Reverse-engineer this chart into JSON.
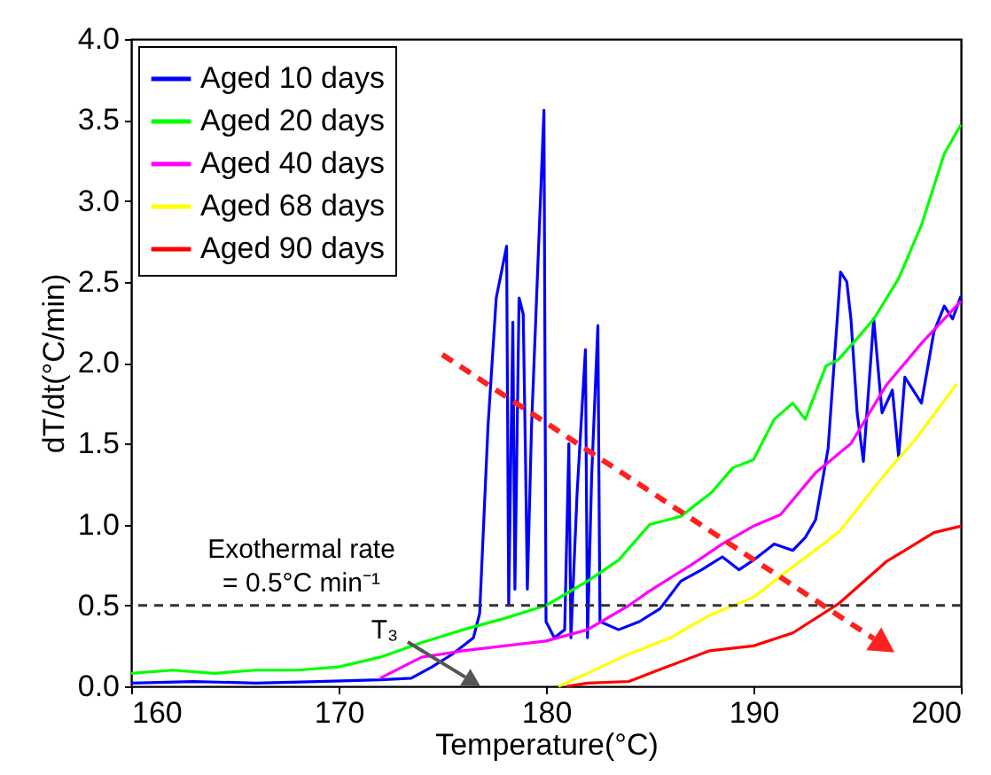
{
  "chart_data": {
    "type": "line",
    "xlabel": "Temperature(°C)",
    "ylabel": "dT/dt(°C/min)",
    "xlim": [
      160,
      200
    ],
    "xticks": [
      160,
      170,
      180,
      190,
      200
    ],
    "ylim": [
      0,
      4
    ],
    "yticks": [
      {
        "value": 0,
        "label": "0.0"
      },
      0.5,
      {
        "value": 1,
        "label": "1.0"
      },
      1.5,
      {
        "value": 2,
        "label": "2.0"
      },
      2.5,
      {
        "value": 3,
        "label": "3.0"
      },
      3.5,
      {
        "value": 4,
        "label": "4.0"
      }
    ],
    "grid": false,
    "legend": "top left",
    "series": [
      {
        "name": "Aged 10 days",
        "color": "#0000ff",
        "x": [
          160,
          163,
          166,
          169,
          172,
          173.5,
          174.5,
          175.5,
          176.5,
          176.8,
          177.2,
          177.6,
          178.1,
          178.2,
          178.4,
          178.5,
          178.7,
          178.9,
          179.0,
          179.1,
          179.3,
          179.9,
          180.0,
          180.4,
          180.9,
          181.1,
          181.2,
          181.5,
          181.9,
          182.0,
          182.2,
          182.5,
          182.6,
          183.5,
          184.5,
          185.5,
          186.5,
          187.5,
          188.5,
          189.3,
          190,
          191,
          191.9,
          192.5,
          193,
          193.6,
          194.2,
          194.5,
          194.7,
          195,
          195.3,
          195.8,
          196.2,
          196.7,
          197.0,
          197.3,
          198.1,
          198.7,
          199.2,
          199.6,
          200
        ],
        "values": [
          0.02,
          0.03,
          0.02,
          0.03,
          0.04,
          0.05,
          0.12,
          0.2,
          0.3,
          0.45,
          1.6,
          2.4,
          2.72,
          0.5,
          2.25,
          0.6,
          2.4,
          2.3,
          1.5,
          0.6,
          1.6,
          3.56,
          0.4,
          0.3,
          0.35,
          1.5,
          0.3,
          1.2,
          2.08,
          0.3,
          1.3,
          2.23,
          0.4,
          0.35,
          0.4,
          0.48,
          0.65,
          0.72,
          0.8,
          0.72,
          0.78,
          0.88,
          0.84,
          0.92,
          1.03,
          1.47,
          2.56,
          2.5,
          2.27,
          1.69,
          1.39,
          2.27,
          1.69,
          1.83,
          1.42,
          1.91,
          1.75,
          2.19,
          2.35,
          2.27,
          2.41
        ]
      },
      {
        "name": "Aged 20 days",
        "color": "#00ff00",
        "x": [
          160,
          162,
          164,
          166,
          168,
          170,
          172,
          174,
          176,
          178,
          180,
          182,
          183.5,
          185,
          186.5,
          188,
          189,
          190,
          191,
          191.9,
          192.5,
          193.5,
          194.1,
          195,
          195.8,
          197,
          198.1,
          199.2,
          200
        ],
        "values": [
          0.08,
          0.1,
          0.08,
          0.1,
          0.1,
          0.12,
          0.18,
          0.27,
          0.35,
          0.42,
          0.5,
          0.65,
          0.78,
          1.0,
          1.05,
          1.2,
          1.35,
          1.4,
          1.65,
          1.75,
          1.65,
          1.98,
          2.02,
          2.15,
          2.27,
          2.52,
          2.85,
          3.29,
          3.47
        ]
      },
      {
        "name": "Aged 40 days",
        "color": "#ff00ff",
        "x": [
          172,
          174,
          176,
          178,
          180,
          182,
          184,
          185,
          187,
          188.5,
          190,
          191.3,
          193,
          194.7,
          196.4,
          198.1,
          200
        ],
        "values": [
          0.05,
          0.18,
          0.22,
          0.25,
          0.28,
          0.35,
          0.5,
          0.59,
          0.75,
          0.88,
          0.99,
          1.06,
          1.32,
          1.5,
          1.86,
          2.12,
          2.38
        ]
      },
      {
        "name": "Aged 68 days",
        "color": "#ffff00",
        "x": [
          180.6,
          182,
          184,
          186,
          187.9,
          190,
          191.5,
          194.1,
          196.4,
          197.9,
          199.8
        ],
        "values": [
          0.0,
          0.08,
          0.2,
          0.3,
          0.44,
          0.55,
          0.7,
          0.95,
          1.32,
          1.54,
          1.87
        ]
      },
      {
        "name": "Aged 90 days",
        "color": "#ff0000",
        "x": [
          181,
          182,
          184,
          185.6,
          187.9,
          190,
          191.9,
          194.1,
          196.4,
          198.7,
          200
        ],
        "values": [
          0.0,
          0.02,
          0.03,
          0.11,
          0.22,
          0.25,
          0.33,
          0.51,
          0.77,
          0.95,
          0.99
        ]
      }
    ],
    "ref_lines": [
      {
        "axis": "y",
        "value": 0.5,
        "label": "Exothermal rate\n= 0.5°C min⁻¹",
        "color": "#333333",
        "line_style": "dashed"
      }
    ],
    "annotations": [
      "T₃"
    ]
  }
}
